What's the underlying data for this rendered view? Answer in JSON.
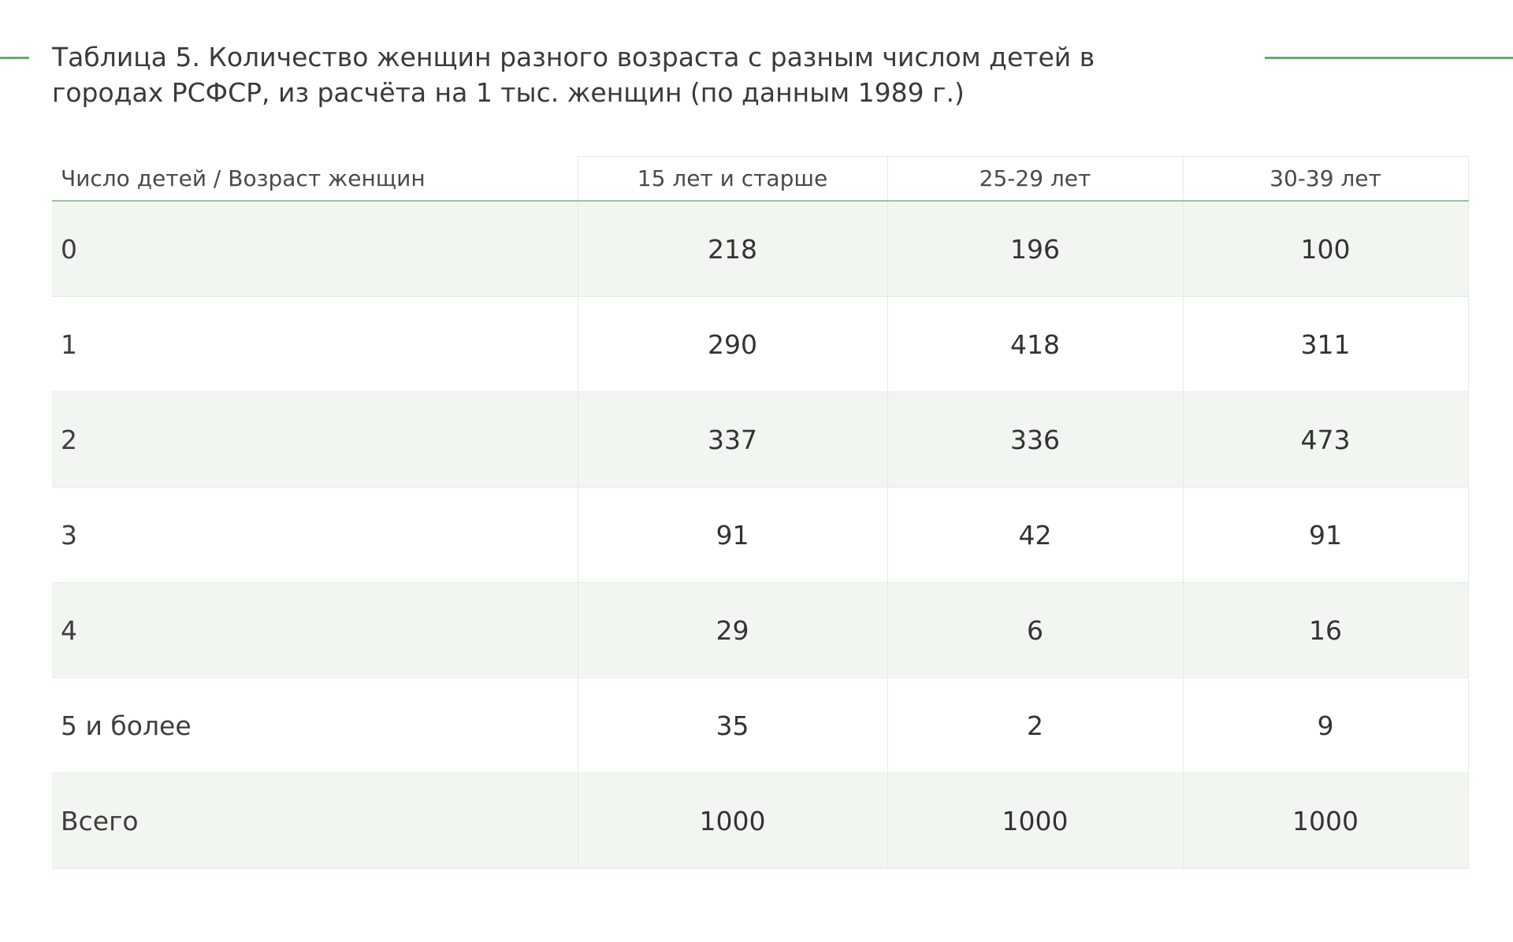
{
  "title": "Таблица 5. Количество женщин разного возраста с разным числом детей в городах РСФСР, из расчёта на 1 тыс. женщин (по данным 1989 г.)",
  "accent_color": "#6aa86e",
  "table": {
    "headers": [
      "Число детей / Возраст женщин",
      "15 лет и старше",
      "25-29 лет",
      "30-39 лет"
    ],
    "rows": [
      {
        "label": "0",
        "values": [
          "218",
          "196",
          "100"
        ]
      },
      {
        "label": "1",
        "values": [
          "290",
          "418",
          "311"
        ]
      },
      {
        "label": "2",
        "values": [
          "337",
          "336",
          "473"
        ]
      },
      {
        "label": "3",
        "values": [
          "91",
          "42",
          "91"
        ]
      },
      {
        "label": "4",
        "values": [
          "29",
          "6",
          "16"
        ]
      },
      {
        "label": "5 и более",
        "values": [
          "35",
          "2",
          "9"
        ]
      },
      {
        "label": "Всего",
        "values": [
          "1000",
          "1000",
          "1000"
        ]
      }
    ]
  }
}
